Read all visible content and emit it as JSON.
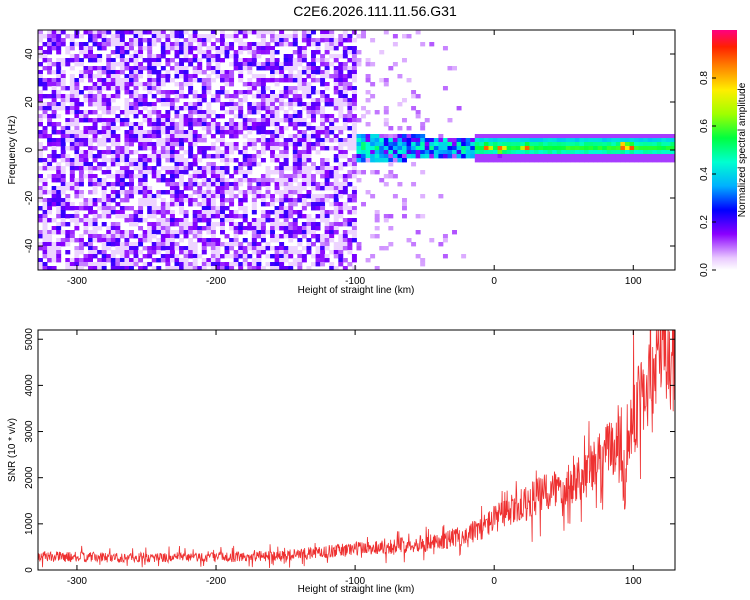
{
  "title": "C2E6.2026.111.11.56.G31",
  "chart_data": [
    {
      "type": "heatmap",
      "xlabel": "Height of straight line (km)",
      "ylabel": "Frequency (Hz)",
      "xlim": [
        -328,
        130
      ],
      "ylim": [
        -50,
        50
      ],
      "xticks": [
        -300,
        -200,
        -100,
        0,
        100
      ],
      "yticks": [
        -40,
        -20,
        0,
        20,
        40
      ],
      "colorbar": {
        "label": "Normalized spectral amplitude",
        "range": [
          0,
          1
        ],
        "ticks": [
          0.0,
          0.2,
          0.4,
          0.6,
          0.8
        ]
      },
      "features": {
        "noise_region_x": [
          -328,
          -100
        ],
        "transition_region_x": [
          -100,
          -15
        ],
        "signal_band_center_hz": 0,
        "signal_band_x": [
          -105,
          130
        ],
        "peak_amplitude_points": [
          {
            "x": -5,
            "y": 1,
            "z": 0.9
          },
          {
            "x": 5,
            "y": 0.5,
            "z": 0.92
          },
          {
            "x": 23,
            "y": 1,
            "z": 0.9
          },
          {
            "x": 93,
            "y": 1.5,
            "z": 0.97
          },
          {
            "x": 98,
            "y": 1,
            "z": 0.93
          }
        ]
      }
    },
    {
      "type": "line",
      "xlabel": "Height of straight line (km)",
      "ylabel": "SNR (10 * v/v)",
      "xlim": [
        -328,
        130
      ],
      "ylim": [
        0,
        5200
      ],
      "xticks": [
        -300,
        -200,
        -100,
        0,
        100
      ],
      "yticks": [
        0,
        1000,
        2000,
        3000,
        4000,
        5000
      ],
      "series": [
        {
          "color": "#ee3030",
          "x": [
            -328,
            -300,
            -250,
            -200,
            -175,
            -150,
            -125,
            -110,
            -100,
            -90,
            -80,
            -70,
            -60,
            -50,
            -40,
            -30,
            -20,
            -10,
            0,
            10,
            20,
            30,
            40,
            50,
            60,
            70,
            80,
            90,
            92,
            94,
            96,
            100,
            105,
            110,
            115,
            120,
            125,
            130
          ],
          "values": [
            300,
            280,
            270,
            280,
            290,
            320,
            380,
            430,
            470,
            480,
            500,
            520,
            560,
            580,
            600,
            700,
            750,
            900,
            1100,
            1250,
            1400,
            1550,
            1700,
            1850,
            2000,
            2200,
            2500,
            2900,
            2200,
            1500,
            2800,
            3300,
            3700,
            4000,
            4400,
            4800,
            4500,
            4400
          ]
        }
      ]
    }
  ]
}
